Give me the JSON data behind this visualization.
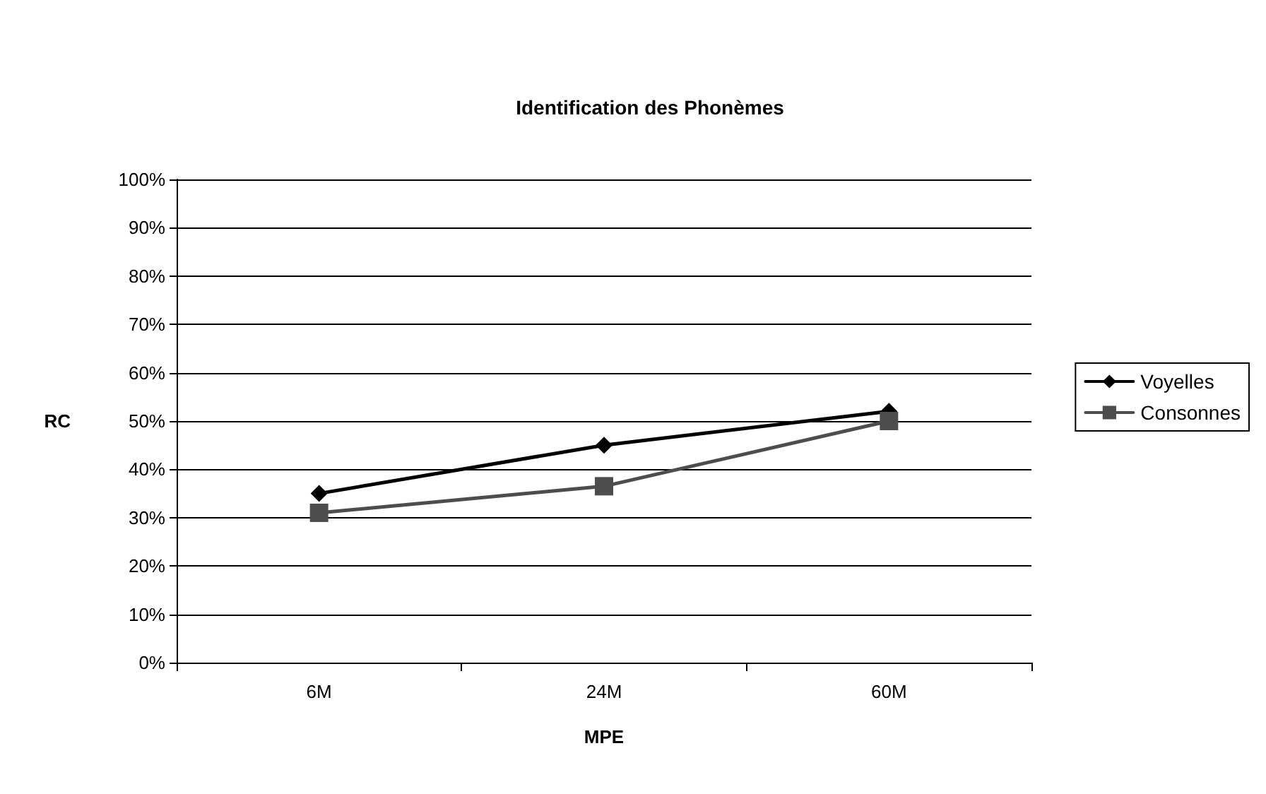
{
  "chart_data": {
    "type": "line",
    "title": "Identification des Phonèmes",
    "xlabel": "MPE",
    "ylabel": "RC",
    "categories": [
      "6M",
      "24M",
      "60M"
    ],
    "series": [
      {
        "name": "Voyelles",
        "color": "#000000",
        "marker": "diamond",
        "values": [
          35,
          45,
          52
        ]
      },
      {
        "name": "Consonnes",
        "color": "#4d4d4d",
        "marker": "square",
        "values": [
          31,
          36.5,
          50
        ]
      }
    ],
    "ylim": [
      0,
      100
    ],
    "yticks": [
      {
        "value": 0,
        "label": "0%"
      },
      {
        "value": 10,
        "label": "10%"
      },
      {
        "value": 20,
        "label": "20%"
      },
      {
        "value": 30,
        "label": "30%"
      },
      {
        "value": 40,
        "label": "40%"
      },
      {
        "value": 50,
        "label": "50%"
      },
      {
        "value": 60,
        "label": "60%"
      },
      {
        "value": 70,
        "label": "70%"
      },
      {
        "value": 80,
        "label": "80%"
      },
      {
        "value": 90,
        "label": "90%"
      },
      {
        "value": 100,
        "label": "100%"
      }
    ],
    "grid": "y",
    "legend": "right",
    "line_style": "solid"
  }
}
